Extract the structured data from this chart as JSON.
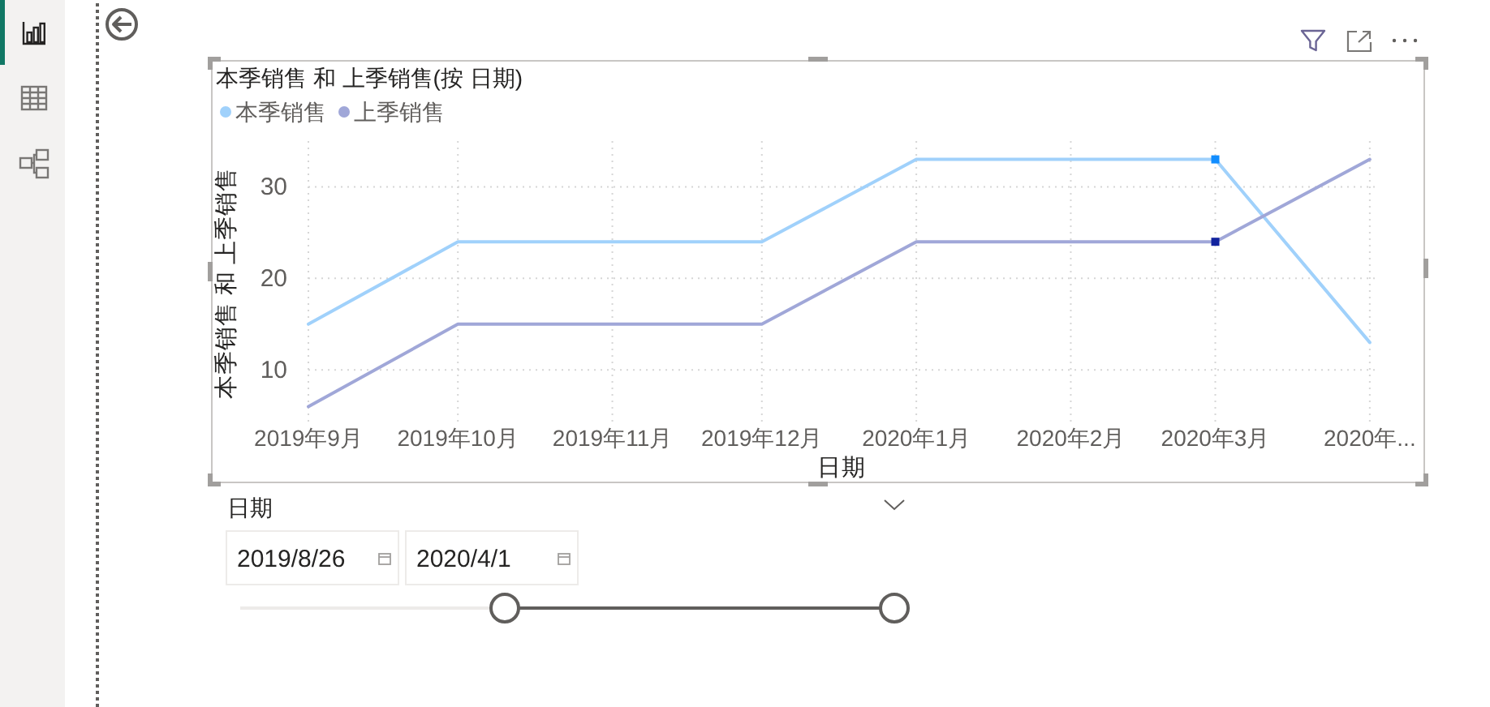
{
  "chart_data": [
    {
      "type": "line",
      "title": "本季销售 和 上季销售(按 日期)",
      "xlabel": "日期",
      "ylabel": "本季销售 和 上季销售",
      "x": [
        "2019-09-01",
        "2019-10-01",
        "2019-11-01",
        "2019-12-01",
        "2020-01-01",
        "2020-02-01",
        "2020-03-01",
        "2020-04-01"
      ],
      "series": [
        {
          "name": "本季销售",
          "color": "#a0d1fb",
          "values": [
            15,
            24,
            24,
            24,
            33,
            33,
            33,
            13
          ]
        },
        {
          "name": "上季销售",
          "color": "#a0a7d8",
          "values": [
            6,
            15,
            15,
            15,
            24,
            24,
            24,
            33
          ]
        },
        {
          "type": "scatter",
          "marker": "square",
          "color": "#118dff",
          "x": [
            "2020-03-01"
          ],
          "values": [
            33
          ]
        },
        {
          "type": "scatter",
          "marker": "square",
          "color": "#12239e",
          "x": [
            "2020-03-01"
          ],
          "values": [
            24
          ]
        }
      ],
      "xlim": [
        "2019-09-01",
        "2020-04-02"
      ],
      "xticks": [
        {
          "value": "2019-09-01",
          "label": "2019年9月"
        },
        {
          "value": "2019-10-01",
          "label": "2019年10月"
        },
        {
          "value": "2019-11-01",
          "label": "2019年11月"
        },
        {
          "value": "2019-12-01",
          "label": "2019年12月"
        },
        {
          "value": "2020-01-01",
          "label": "2020年1月"
        },
        {
          "value": "2020-02-01",
          "label": "2020年2月"
        },
        {
          "value": "2020-03-01",
          "label": "2020年3月"
        },
        {
          "value": "2020-04-01",
          "label": "2020年..."
        }
      ],
      "ylim": [
        4,
        35
      ],
      "yticks": [
        10,
        20,
        30
      ],
      "grid": true,
      "legend": "top left",
      "line_style": "solid"
    },
    {
      "type": "other",
      "title": "日期",
      "annotations": [
        "2019/8/26",
        "2020/4/1"
      ]
    }
  ]
}
